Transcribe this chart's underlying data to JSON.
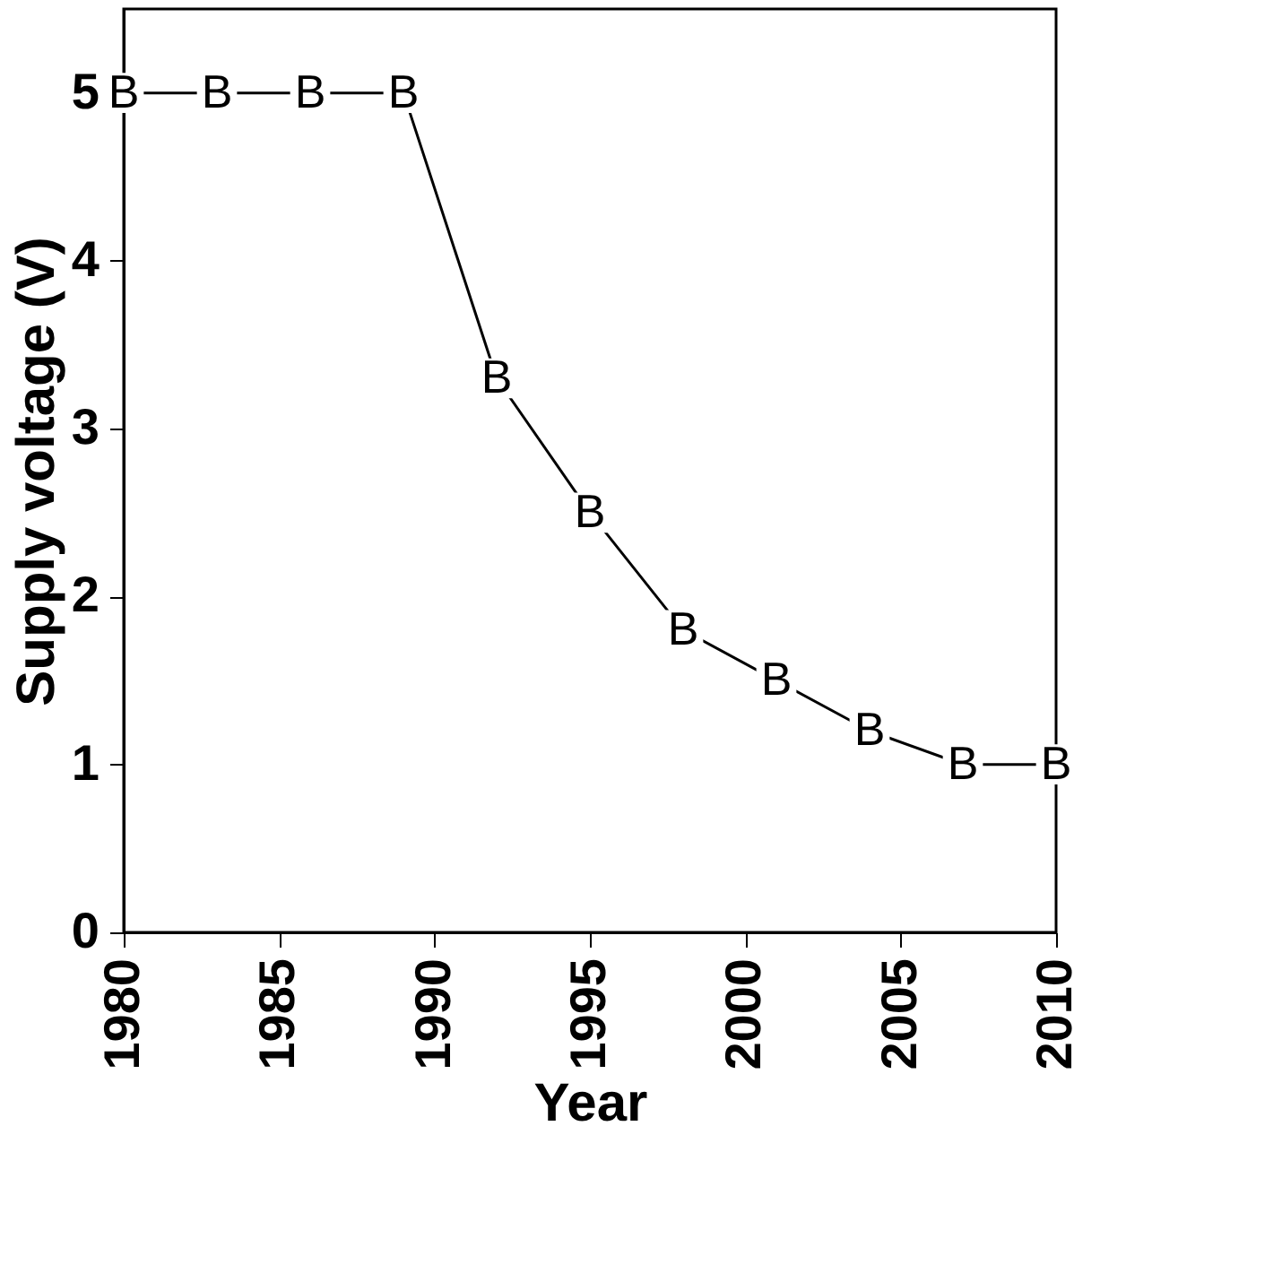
{
  "chart_data": {
    "type": "line",
    "xlabel": "Year",
    "ylabel": "Supply voltage (V)",
    "x": [
      1980,
      1983,
      1986,
      1989,
      1992,
      1995,
      1998,
      2001,
      2004,
      2007,
      2010
    ],
    "series": [
      {
        "name": "B",
        "color": "#000000",
        "values": [
          5,
          5,
          5,
          5,
          3.3,
          2.5,
          1.8,
          1.5,
          1.2,
          1.0,
          1.0
        ]
      }
    ],
    "xlim": [
      1980,
      2010
    ],
    "xticks": [
      1980,
      1985,
      1990,
      1995,
      2000,
      2005,
      2010
    ],
    "ylim": [
      0,
      5.5
    ],
    "yticks": [
      0,
      1,
      2,
      3,
      4,
      5
    ],
    "grid": false,
    "legend": false,
    "marker": "square",
    "line_style": "solid"
  }
}
